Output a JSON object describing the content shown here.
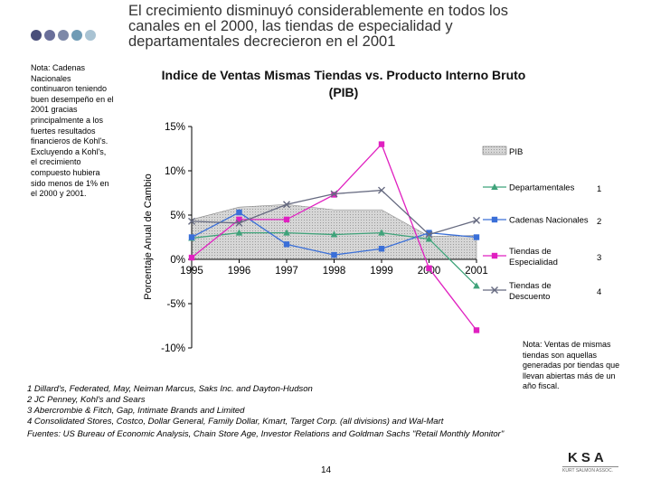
{
  "header": {
    "title_lines": [
      "El crecimiento disminuyó considerablemente en todos los",
      "canales en el 2000, las tiendas de especialidad y",
      "departamentales decrecieron en el 2001"
    ],
    "dot_colors": [
      "#4a4f7a",
      "#6a6f9a",
      "#7d88a8",
      "#6f9bb5",
      "#a9c3d3"
    ]
  },
  "side_note": "Nota: Cadenas Nacionales continuaron teniendo buen desempeño en el 2001 gracias principalmente a los fuertes resultados financieros de Kohl's. Excluyendo a Kohl's, el crecimiento compuesto hubiera sido menos de 1% en el 2000 y 2001.",
  "right_note": "Nota: Ventas de mismas tiendas son aquellas generadas por tiendas que llevan abiertas más de un año fiscal.",
  "footnotes": [
    "1 Dillard's, Federated, May, Neiman Marcus, Saks Inc. and Dayton-Hudson",
    "2 JC Penney, Kohl's and Sears",
    "3 Abercrombie & Fitch, Gap, Intimate Brands and Limited",
    "4 Consolidated Stores, Costco, Dollar General, Family Dollar, Kmart, Target Corp. (all divisions) and Wal-Mart"
  ],
  "sources": "Fuentes: US Bureau of Economic Analysis, Chain Store Age, Investor Relations and Goldman Sachs \"Retail Monthly Monitor\"",
  "page_number": "14",
  "logo": {
    "text": "KSA",
    "subtitle": "KURT SALMON ASSOC."
  },
  "chart_data": {
    "type": "line",
    "title_lines": [
      "Indice de Ventas Mismas Tiendas vs. Producto Interno Bruto",
      "(PIB)"
    ],
    "ylabel": "Porcentaje Anual de Cambio",
    "xlabel": "",
    "x": [
      "1995",
      "1996",
      "1997",
      "1998",
      "1999",
      "2000",
      "2001"
    ],
    "ylim": [
      -10,
      15
    ],
    "yticks": [
      15,
      10,
      5,
      0,
      -5,
      -10
    ],
    "ytick_labels": [
      "15%",
      "10%",
      "5%",
      "0%",
      "-5%",
      "-10%"
    ],
    "pib": {
      "name": "PIB",
      "values": [
        4.5,
        5.9,
        6.2,
        5.6,
        5.6,
        2.6,
        2.7
      ],
      "color": "#d0d0d0"
    },
    "series": [
      {
        "name": "Departamentales",
        "values": [
          2.4,
          3.0,
          3.0,
          2.8,
          3.0,
          2.3,
          -3.0
        ],
        "color": "#3fa37a",
        "marker": "triangle",
        "legend_num": "1"
      },
      {
        "name": "Cadenas Nacionales",
        "values": [
          2.5,
          5.3,
          1.7,
          0.5,
          1.2,
          3.0,
          2.5
        ],
        "color": "#3a6fd8",
        "marker": "square",
        "legend_num": "2"
      },
      {
        "name": "Tiendas de Especialidad",
        "legend_lines": [
          "Tiendas de",
          "Especialidad"
        ],
        "values": [
          0.2,
          4.5,
          4.5,
          7.3,
          13.0,
          -1.0,
          -8.0
        ],
        "color": "#e020c0",
        "marker": "square",
        "legend_num": "3"
      },
      {
        "name": "Tiendas de Descuento",
        "legend_lines": [
          "Tiendas de",
          "Descuento"
        ],
        "values": [
          4.3,
          4.1,
          6.2,
          7.4,
          7.8,
          2.8,
          4.4
        ],
        "color": "#666a80",
        "marker": "x",
        "legend_num": "4"
      }
    ]
  }
}
